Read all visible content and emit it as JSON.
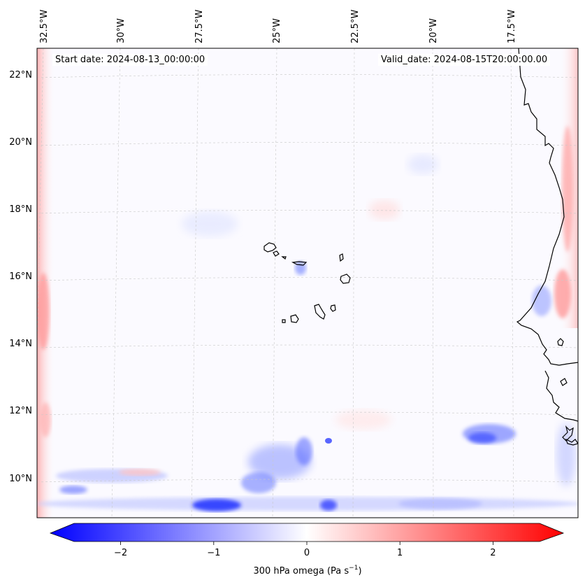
{
  "map": {
    "start_date": "Start date: 2024-08-13_00:00:00",
    "valid_date": "Valid_date: 2024-08-15T20:00:00.00",
    "lon_labels": [
      "32.5°W",
      "30°W",
      "27.5°W",
      "25°W",
      "22.5°W",
      "20°W",
      "17.5°W"
    ],
    "lat_labels": [
      "22°N",
      "20°N",
      "18°N",
      "16°N",
      "14°N",
      "12°N",
      "10°N"
    ],
    "variable": "300 hPa omega",
    "units": "Pa s⁻¹"
  },
  "colorbar": {
    "label_main": "300 hPa omega (Pa s",
    "label_exp": "−1",
    "label_close": ")",
    "ticks": [
      "−2",
      "−1",
      "0",
      "1",
      "2"
    ],
    "tick_values": [
      -2,
      -1,
      0,
      1,
      2
    ],
    "range": [
      -2.6,
      2.6
    ],
    "cmap": "bwr",
    "color_neg": "#0000ff",
    "color_mid": "#ffffff",
    "color_pos": "#ff0000"
  }
}
